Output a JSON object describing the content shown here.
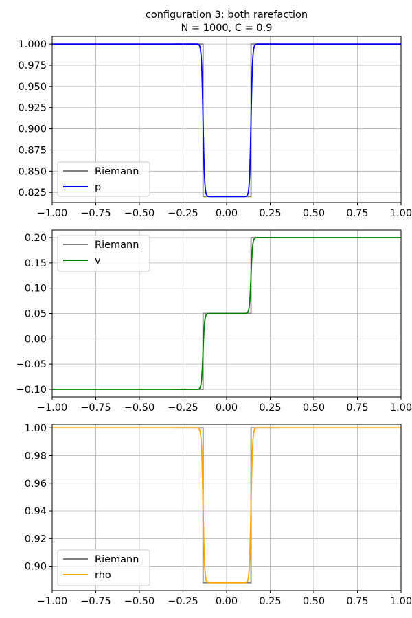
{
  "figure": {
    "title_line1": "configuration 3: both rarefaction",
    "title_line2": "N = 1000,  C = 0.9"
  },
  "chart_data": [
    {
      "type": "line",
      "xlim": [
        -1.0,
        1.0
      ],
      "ylim": [
        0.813,
        1.009
      ],
      "grid": true,
      "legend_placement": "lower-left",
      "xticks": [
        "-1.00",
        "-0.75",
        "-0.50",
        "-0.25",
        "0.00",
        "0.25",
        "0.50",
        "0.75",
        "1.00"
      ],
      "yticks": [
        "0.825",
        "0.850",
        "0.875",
        "0.900",
        "0.925",
        "0.950",
        "0.975",
        "1.000"
      ],
      "series": [
        {
          "name": "Riemann",
          "color": "#808080",
          "kind": "step",
          "left": 1.0,
          "middle": 0.82,
          "right": 1.0,
          "x_left": -0.135,
          "x_right": 0.14,
          "x_start": -0.3,
          "x_end": 0.3
        },
        {
          "name": "p",
          "color": "#0000ff",
          "kind": "smooth",
          "left": 1.0,
          "middle": 0.82,
          "right": 1.0,
          "x_left": -0.135,
          "x_right": 0.14,
          "x_start": -1.0,
          "x_end": 1.0
        }
      ]
    },
    {
      "type": "line",
      "xlim": [
        -1.0,
        1.0
      ],
      "ylim": [
        -0.115,
        0.215
      ],
      "grid": true,
      "legend_placement": "upper-left",
      "xticks": [
        "-1.00",
        "-0.75",
        "-0.50",
        "-0.25",
        "0.00",
        "0.25",
        "0.50",
        "0.75",
        "1.00"
      ],
      "yticks": [
        "-0.10",
        "-0.05",
        "0.00",
        "0.05",
        "0.10",
        "0.15",
        "0.20"
      ],
      "series": [
        {
          "name": "Riemann",
          "color": "#808080",
          "kind": "step",
          "left": -0.1,
          "middle": 0.05,
          "right": 0.2,
          "x_left": -0.135,
          "x_right": 0.14,
          "x_start": -0.3,
          "x_end": 0.3
        },
        {
          "name": "v",
          "color": "#008000",
          "kind": "smooth",
          "left": -0.1,
          "middle": 0.05,
          "right": 0.2,
          "x_left": -0.135,
          "x_right": 0.14,
          "x_start": -1.0,
          "x_end": 1.0
        }
      ]
    },
    {
      "type": "line",
      "xlim": [
        -1.0,
        1.0
      ],
      "ylim": [
        0.8824,
        1.0026
      ],
      "grid": true,
      "legend_placement": "lower-left",
      "xticks": [
        "-1.00",
        "-0.75",
        "-0.50",
        "-0.25",
        "0.00",
        "0.25",
        "0.50",
        "0.75",
        "1.00"
      ],
      "yticks": [
        "0.90",
        "0.92",
        "0.94",
        "0.96",
        "0.98",
        "1.00"
      ],
      "series": [
        {
          "name": "Riemann",
          "color": "#808080",
          "kind": "step",
          "left": 1.0,
          "middle": 0.888,
          "right": 1.0,
          "x_left": -0.135,
          "x_right": 0.14,
          "x_start": -0.3,
          "x_end": 0.3
        },
        {
          "name": "rho",
          "color": "#ffa500",
          "kind": "smooth",
          "left": 1.0,
          "middle": 0.888,
          "right": 1.0,
          "x_left": -0.135,
          "x_right": 0.14,
          "x_start": -1.0,
          "x_end": 1.0
        }
      ]
    }
  ]
}
